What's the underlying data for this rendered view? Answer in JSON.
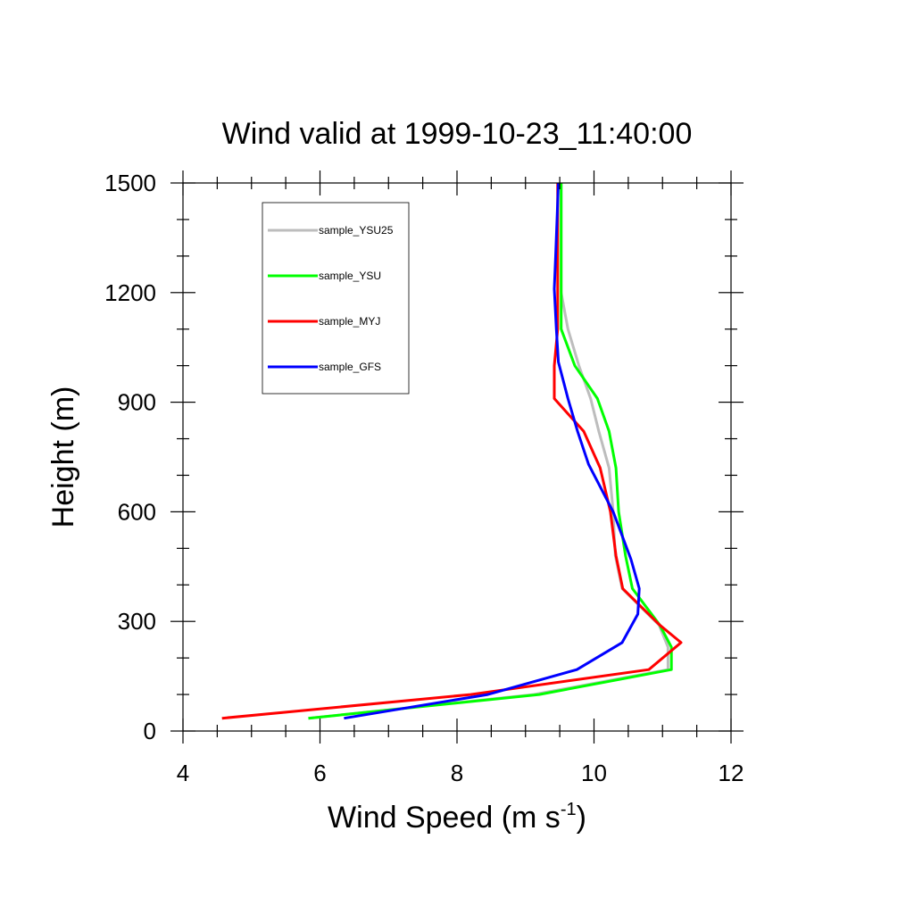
{
  "chart_data": {
    "type": "line",
    "title": "Wind valid at 1999-10-23_11:40:00",
    "xlabel": "Wind Speed (m s",
    "xlabel_superscript": "-1",
    "xlabel_close": ")",
    "ylabel": "Height (m)",
    "xlim": [
      4,
      12
    ],
    "ylim": [
      0,
      1500
    ],
    "xticks": [
      4,
      6,
      8,
      10,
      12
    ],
    "yticks": [
      0,
      300,
      600,
      900,
      1200,
      1500
    ],
    "xtick_labels": [
      "4",
      "6",
      "8",
      "10",
      "12"
    ],
    "ytick_labels": [
      "0",
      "300",
      "600",
      "900",
      "1200",
      "1500"
    ],
    "grid": false,
    "legend_position": "top-left",
    "series": [
      {
        "name": "sample_YSU25",
        "color": "#bdbdbd",
        "x": [
          5.83,
          9.12,
          11.08,
          11.08,
          10.95,
          10.41,
          10.31,
          10.28,
          10.22,
          10.07,
          9.95,
          9.78,
          9.62,
          9.52,
          9.52,
          9.52
        ],
        "y": [
          35,
          100,
          168,
          230,
          290,
          390,
          480,
          600,
          720,
          820,
          910,
          1000,
          1100,
          1200,
          1300,
          1500
        ]
      },
      {
        "name": "sample_YSU",
        "color": "#00ff00",
        "x": [
          5.83,
          9.2,
          11.13,
          11.13,
          10.96,
          10.56,
          10.46,
          10.36,
          10.32,
          10.22,
          10.05,
          9.72,
          9.52,
          9.52,
          9.52,
          9.52
        ],
        "y": [
          35,
          100,
          168,
          230,
          290,
          390,
          480,
          600,
          720,
          820,
          910,
          1000,
          1100,
          1200,
          1300,
          1500
        ]
      },
      {
        "name": "sample_MYJ",
        "color": "#ff0000",
        "x": [
          4.57,
          8.2,
          10.8,
          11.27,
          10.96,
          10.42,
          10.32,
          10.24,
          10.09,
          9.85,
          9.42,
          9.42,
          9.47,
          9.47,
          9.47,
          9.47
        ],
        "y": [
          35,
          100,
          168,
          242,
          290,
          390,
          480,
          600,
          720,
          820,
          910,
          1000,
          1100,
          1200,
          1300,
          1500
        ]
      },
      {
        "name": "sample_GFS",
        "color": "#0000ff",
        "x": [
          6.35,
          8.45,
          9.75,
          10.41,
          10.64,
          10.66,
          10.54,
          10.28,
          9.92,
          9.76,
          9.62,
          9.48,
          9.45,
          9.42,
          9.44,
          9.48
        ],
        "y": [
          35,
          100,
          168,
          242,
          320,
          390,
          470,
          600,
          730,
          820,
          910,
          1010,
          1100,
          1210,
          1300,
          1500
        ]
      }
    ]
  }
}
